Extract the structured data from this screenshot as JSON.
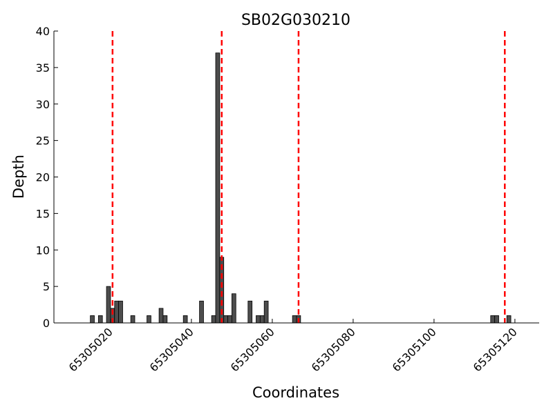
{
  "chart_data": {
    "type": "bar",
    "title": "SB02G030210",
    "xlabel": "Coordinates",
    "ylabel": "Depth",
    "xlim": [
      65305006,
      65305126
    ],
    "ylim": [
      0,
      40
    ],
    "grid": false,
    "bar_width": 1,
    "bar_color": "#4d4d4d",
    "marker_color": "#ff0000",
    "xticks": [
      65305020,
      65305040,
      65305060,
      65305080,
      65305100,
      65305120
    ],
    "yticks": [
      0,
      5,
      10,
      15,
      20,
      25,
      30,
      35,
      40
    ],
    "bars": [
      {
        "x": 65305015,
        "y": 1
      },
      {
        "x": 65305017,
        "y": 1
      },
      {
        "x": 65305019,
        "y": 5
      },
      {
        "x": 65305020,
        "y": 2
      },
      {
        "x": 65305021,
        "y": 3
      },
      {
        "x": 65305022,
        "y": 3
      },
      {
        "x": 65305025,
        "y": 1
      },
      {
        "x": 65305029,
        "y": 1
      },
      {
        "x": 65305032,
        "y": 2
      },
      {
        "x": 65305033,
        "y": 1
      },
      {
        "x": 65305038,
        "y": 1
      },
      {
        "x": 65305042,
        "y": 3
      },
      {
        "x": 65305045,
        "y": 1
      },
      {
        "x": 65305046,
        "y": 37
      },
      {
        "x": 65305047,
        "y": 9
      },
      {
        "x": 65305048,
        "y": 1
      },
      {
        "x": 65305049,
        "y": 1
      },
      {
        "x": 65305050,
        "y": 4
      },
      {
        "x": 65305054,
        "y": 3
      },
      {
        "x": 65305056,
        "y": 1
      },
      {
        "x": 65305057,
        "y": 1
      },
      {
        "x": 65305058,
        "y": 3
      },
      {
        "x": 65305065,
        "y": 1
      },
      {
        "x": 65305066,
        "y": 1
      },
      {
        "x": 65305114,
        "y": 1
      },
      {
        "x": 65305115,
        "y": 1
      },
      {
        "x": 65305118,
        "y": 1
      }
    ],
    "markers": [
      65305020.5,
      65305047.5,
      65305066.5,
      65305117.5
    ]
  }
}
